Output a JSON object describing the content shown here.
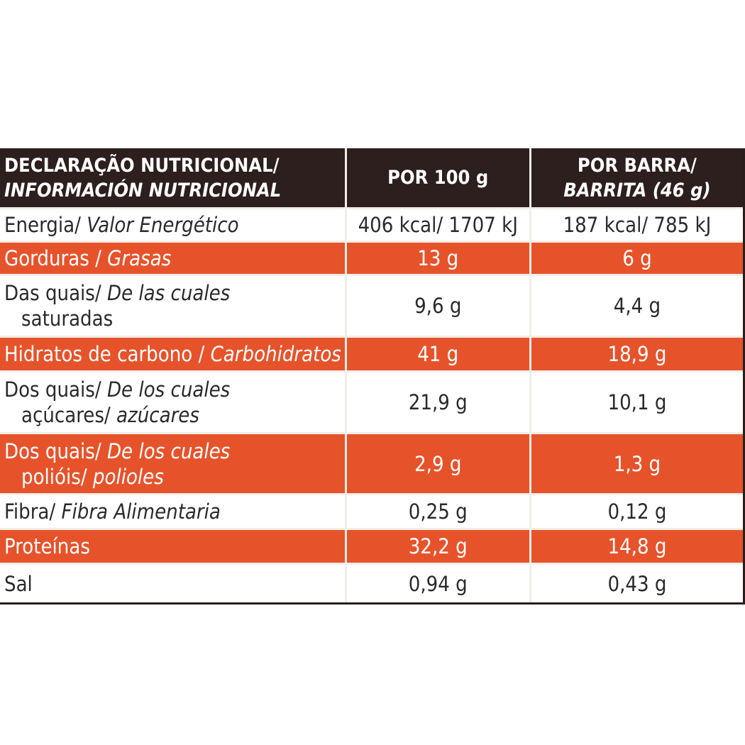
{
  "header": {
    "col1_line1": "DECLARAÇÃO NUTRICIONAL/",
    "col1_line2": "INFORMACIÓN NUTRICIONAL",
    "col2": "POR 100 g",
    "col3_line1": "POR BARRA/",
    "col3_line2": "BARRITA (46 g)"
  },
  "rows": [
    {
      "pt": "Energia/",
      "es": "Valor Energético",
      "per100": "406 kcal/ 1707 kJ",
      "perBar": "187 kcal/ 785 kJ"
    },
    {
      "pt": "Gorduras /",
      "es": "Grasas",
      "per100": "13 g",
      "perBar": "6 g"
    },
    {
      "pt": "Das quais/",
      "es": "De las cuales",
      "pt2": "saturadas",
      "per100": "9,6 g",
      "perBar": "4,4 g"
    },
    {
      "pt": "Hidratos de carbono /",
      "es": "Carbohidratos",
      "per100": "41 g",
      "perBar": "18,9 g"
    },
    {
      "pt": "Dos quais/",
      "es": "De los cuales",
      "pt2": "açúcares/",
      "es2": "azúcares",
      "per100": "21,9 g",
      "perBar": "10,1 g"
    },
    {
      "pt": "Dos quais/",
      "es": "De los cuales",
      "pt2": "poliόis/",
      "es2": "polioles",
      "per100": "2,9 g",
      "perBar": "1,3 g"
    },
    {
      "pt": "Fibra/",
      "es": "Fibra Alimentaria",
      "per100": "0,25 g",
      "perBar": "0,12 g"
    },
    {
      "pt": "Proteínas",
      "per100": "32,2 g",
      "perBar": "14,8 g"
    },
    {
      "pt": "Sal",
      "per100": "0,94 g",
      "perBar": "0,43 g"
    }
  ],
  "colors": {
    "header_bg": "#2c1f1d",
    "accent_row": "#e6532b",
    "text": "#2a2a2a"
  }
}
